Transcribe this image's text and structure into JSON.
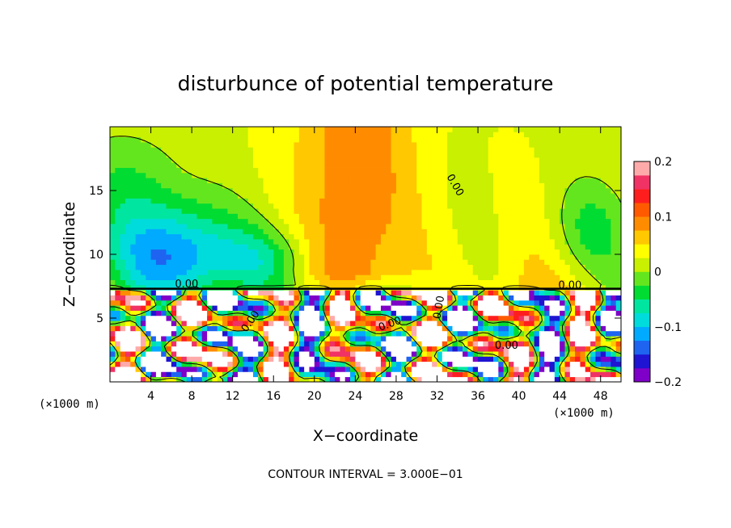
{
  "chart_data": {
    "type": "heatmap",
    "title": "disturbunce of potential temperature",
    "xlabel": "X−coordinate",
    "ylabel": "Z−coordinate",
    "x_unit": "(×1000 m)",
    "y_unit": "(×1000 m)",
    "xlim": [
      0,
      50
    ],
    "ylim": [
      0,
      20
    ],
    "x_ticks": [
      4,
      8,
      12,
      16,
      20,
      24,
      28,
      32,
      36,
      40,
      44,
      48
    ],
    "x_tick_labels": [
      "4",
      "8",
      "12",
      "16",
      "20",
      "24",
      "28",
      "32",
      "36",
      "40",
      "44",
      "48"
    ],
    "y_ticks": [
      5,
      10,
      15
    ],
    "y_tick_labels": [
      "5",
      "10",
      "15"
    ],
    "colorbar": {
      "range": [
        -0.2,
        0.2
      ],
      "ticks": [
        0.2,
        0.1,
        0,
        -0.1,
        -0.2
      ],
      "tick_labels": [
        "0.2",
        "0.1",
        "0",
        "−0.1",
        "−0.2"
      ]
    },
    "contour_labels": [
      "0.00",
      "0.00",
      "0.00",
      "0.00",
      "0.00",
      "0.00",
      "0.00"
    ],
    "contour_interval_text": "CONTOUR INTERVAL = 3.000E−01",
    "colors": {
      "palette": [
        "#7f00c8",
        "#1e14d2",
        "#1e64f0",
        "#00aaff",
        "#00dcdc",
        "#00e6a0",
        "#00dc32",
        "#64e61e",
        "#c8f000",
        "#ffff00",
        "#ffc800",
        "#ff8c00",
        "#ff5a00",
        "#ff1e1e",
        "#f03264",
        "#ffaaaa"
      ]
    }
  }
}
